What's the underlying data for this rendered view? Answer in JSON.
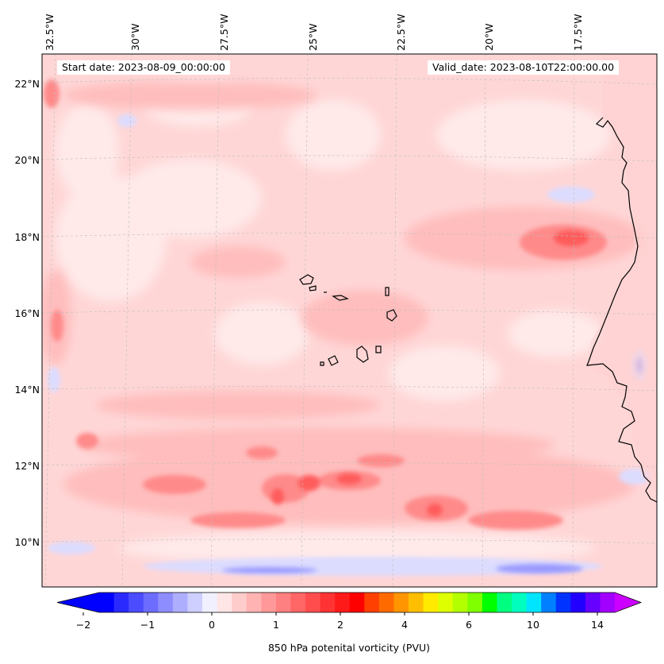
{
  "map": {
    "variable": "850 hPa potential vorticity",
    "start_date": "Start date: 2023-08-09_00:00:00",
    "valid_date": "Valid_date: 2023-08-10T22:00:00.00",
    "lon_labels": [
      "32.5°W",
      "30°W",
      "27.5°W",
      "25°W",
      "22.5°W",
      "20°W",
      "17.5°W"
    ],
    "lat_labels": [
      "22°N",
      "20°N",
      "18°N",
      "16°N",
      "14°N",
      "12°N",
      "10°N"
    ],
    "extent": {
      "lon_min": -33.0,
      "lon_max": -15.0,
      "lat_min": 8.9,
      "lat_max": 22.8
    },
    "features": [
      "African coastline",
      "Cape Verde islands"
    ]
  },
  "colorbar": {
    "label": "850 hPa potenital vorticity (PVU)",
    "tick_labels": [
      "−2",
      "−1",
      "0",
      "1",
      "2",
      "4",
      "6",
      "10",
      "14"
    ],
    "colors": [
      "#0000ff",
      "#2a2aff",
      "#4b4bff",
      "#6c6cff",
      "#8d8dff",
      "#aeaeff",
      "#cfcfff",
      "#f0f0ff",
      "#ffe6e6",
      "#ffcccc",
      "#ffb3b3",
      "#ff9999",
      "#ff8080",
      "#ff6666",
      "#ff4d4d",
      "#ff3333",
      "#ff1a1a",
      "#ff0000",
      "#ff4000",
      "#ff6a00",
      "#ff9500",
      "#ffbf00",
      "#ffea00",
      "#ddff00",
      "#b3ff00",
      "#80ff00",
      "#00ff00",
      "#00ff80",
      "#00ffbf",
      "#00e5ff",
      "#0080ff",
      "#0033ff",
      "#2200ff",
      "#6600ff",
      "#a200ff"
    ],
    "under_color": "#0000ff",
    "over_color": "#cc00ff"
  }
}
